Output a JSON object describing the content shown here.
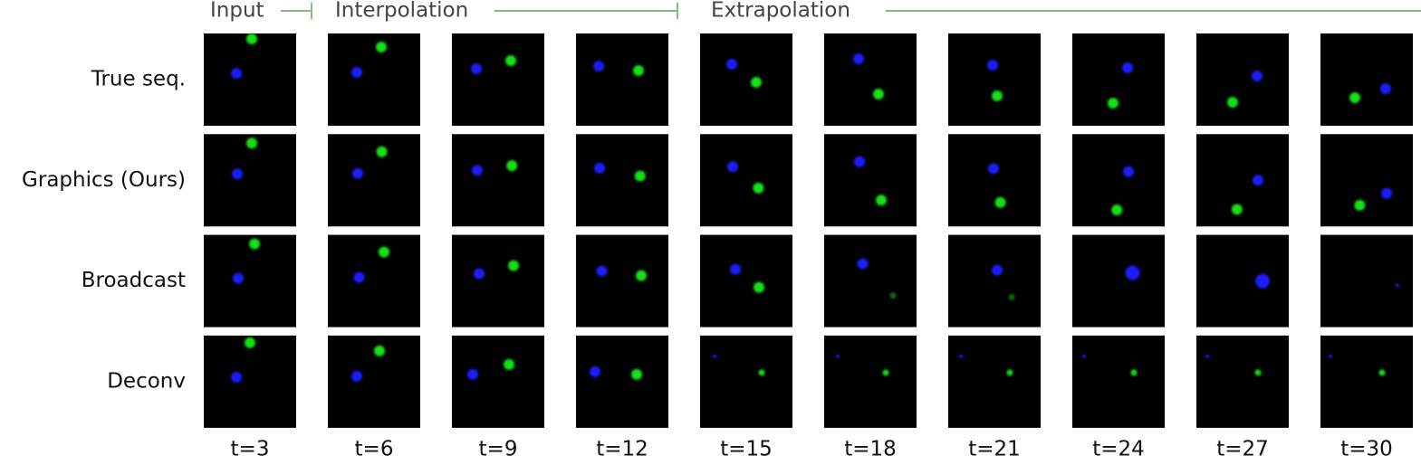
{
  "header": {
    "phases": [
      "Input",
      "Interpolation",
      "Extrapolation"
    ]
  },
  "rows": [
    "True seq.",
    "Graphics (Ours)",
    "Broadcast",
    "Deconv"
  ],
  "columns": [
    "t=3",
    "t=6",
    "t=9",
    "t=12",
    "t=15",
    "t=18",
    "t=21",
    "t=24",
    "t=27",
    "t=30"
  ]
}
